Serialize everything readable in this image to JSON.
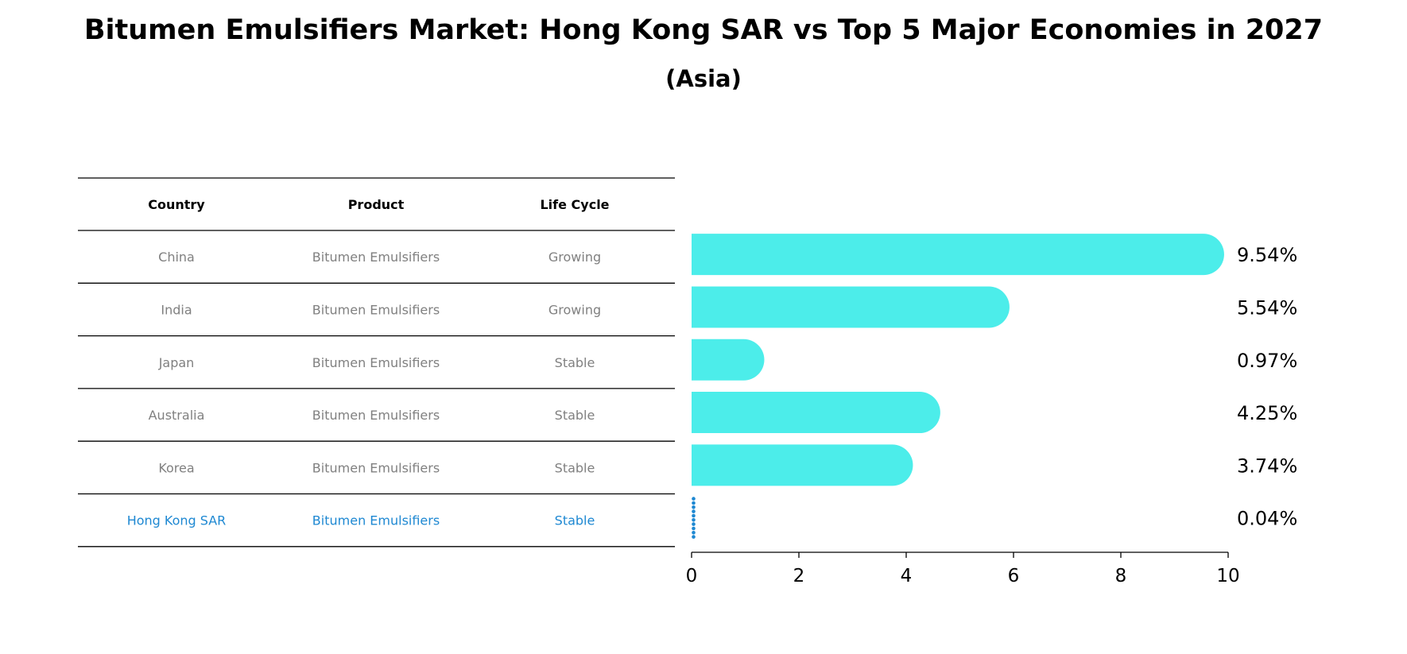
{
  "chart_data": {
    "type": "bar",
    "orientation": "horizontal",
    "title": "Bitumen Emulsifiers Market: Hong Kong SAR vs Top 5 Major Economies in 2027",
    "subtitle": "(Asia)",
    "table": {
      "headers": [
        "Country",
        "Product",
        "Life Cycle"
      ],
      "rows": [
        [
          "China",
          "Bitumen Emulsifiers",
          "Growing"
        ],
        [
          "India",
          "Bitumen Emulsifiers",
          "Growing"
        ],
        [
          "Japan",
          "Bitumen Emulsifiers",
          "Stable"
        ],
        [
          "Australia",
          "Bitumen Emulsifiers",
          "Stable"
        ],
        [
          "Korea",
          "Bitumen Emulsifiers",
          "Stable"
        ],
        [
          "Hong Kong SAR",
          "Bitumen Emulsifiers",
          "Stable"
        ]
      ]
    },
    "categories": [
      "China",
      "India",
      "Japan",
      "Australia",
      "Korea",
      "Hong Kong SAR"
    ],
    "values": [
      9.54,
      5.54,
      0.97,
      4.25,
      3.74,
      0.04
    ],
    "value_labels": [
      "9.54%",
      "5.54%",
      "0.97%",
      "4.25%",
      "3.74%",
      "0.04%"
    ],
    "highlight_index": 5,
    "xlim": [
      0,
      10
    ],
    "xticks": [
      0,
      2,
      4,
      6,
      8,
      10
    ],
    "xtick_labels": [
      "0",
      "2",
      "4",
      "6",
      "8",
      "10"
    ],
    "xlabel": "",
    "ylabel": "",
    "grid": false,
    "colors": {
      "bar": "#4CEDEA",
      "highlight": "#1E88D2",
      "table_text": "#808080",
      "highlight_text": "#1E88D2",
      "line": "#000000"
    }
  }
}
